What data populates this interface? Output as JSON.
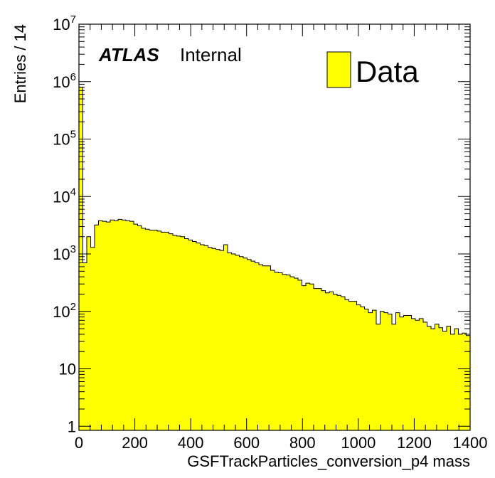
{
  "chart_data": {
    "type": "bar",
    "histogram": true,
    "xlabel": "GSFTrackParticles_conversion_p4 mass",
    "ylabel": "Entries / 14",
    "xlim": [
      0,
      1400
    ],
    "ylim": [
      0.85,
      10000000
    ],
    "y_log_scale": true,
    "x_ticks": [
      0,
      200,
      400,
      600,
      800,
      1000,
      1200,
      1400
    ],
    "x_tick_labels": [
      "0",
      "200",
      "400",
      "600",
      "800",
      "1000",
      "1200",
      "1400"
    ],
    "y_ticks": [
      {
        "value": 1,
        "base": "1",
        "exp": ""
      },
      {
        "value": 10,
        "base": "10",
        "exp": ""
      },
      {
        "value": 100,
        "base": "10",
        "exp": "2"
      },
      {
        "value": 1000,
        "base": "10",
        "exp": "3"
      },
      {
        "value": 10000,
        "base": "10",
        "exp": "4"
      },
      {
        "value": 100000,
        "base": "10",
        "exp": "5"
      },
      {
        "value": 1000000,
        "base": "10",
        "exp": "6"
      },
      {
        "value": 10000000,
        "base": "10",
        "exp": "7"
      }
    ],
    "atlas_label": "ATLAS",
    "atlas_sublabel": "Internal",
    "legend_position": "top-right",
    "colors": {
      "fill": "#ffff00",
      "line": "#000000"
    },
    "series": [
      {
        "name": "Data",
        "bin_width": 14,
        "x_start": 0,
        "values": [
          800000,
          700,
          2000,
          1300,
          3200,
          3800,
          3700,
          3600,
          3900,
          3800,
          4000,
          3900,
          3800,
          3700,
          3300,
          3100,
          2800,
          2700,
          2600,
          2600,
          2500,
          2400,
          2400,
          2250,
          2100,
          2050,
          2000,
          1850,
          1750,
          1650,
          1550,
          1450,
          1400,
          1300,
          1250,
          1200,
          1150,
          1450,
          1050,
          1000,
          950,
          900,
          850,
          800,
          750,
          700,
          650,
          620,
          620,
          520,
          480,
          470,
          440,
          430,
          400,
          380,
          350,
          280,
          310,
          300,
          250,
          250,
          230,
          210,
          220,
          200,
          190,
          180,
          160,
          150,
          150,
          130,
          120,
          110,
          95,
          105,
          60,
          100,
          95,
          90,
          60,
          95,
          80,
          85,
          85,
          75,
          70,
          75,
          65,
          55,
          50,
          60,
          52,
          45,
          55,
          40,
          50,
          40,
          42,
          38
        ]
      }
    ]
  }
}
